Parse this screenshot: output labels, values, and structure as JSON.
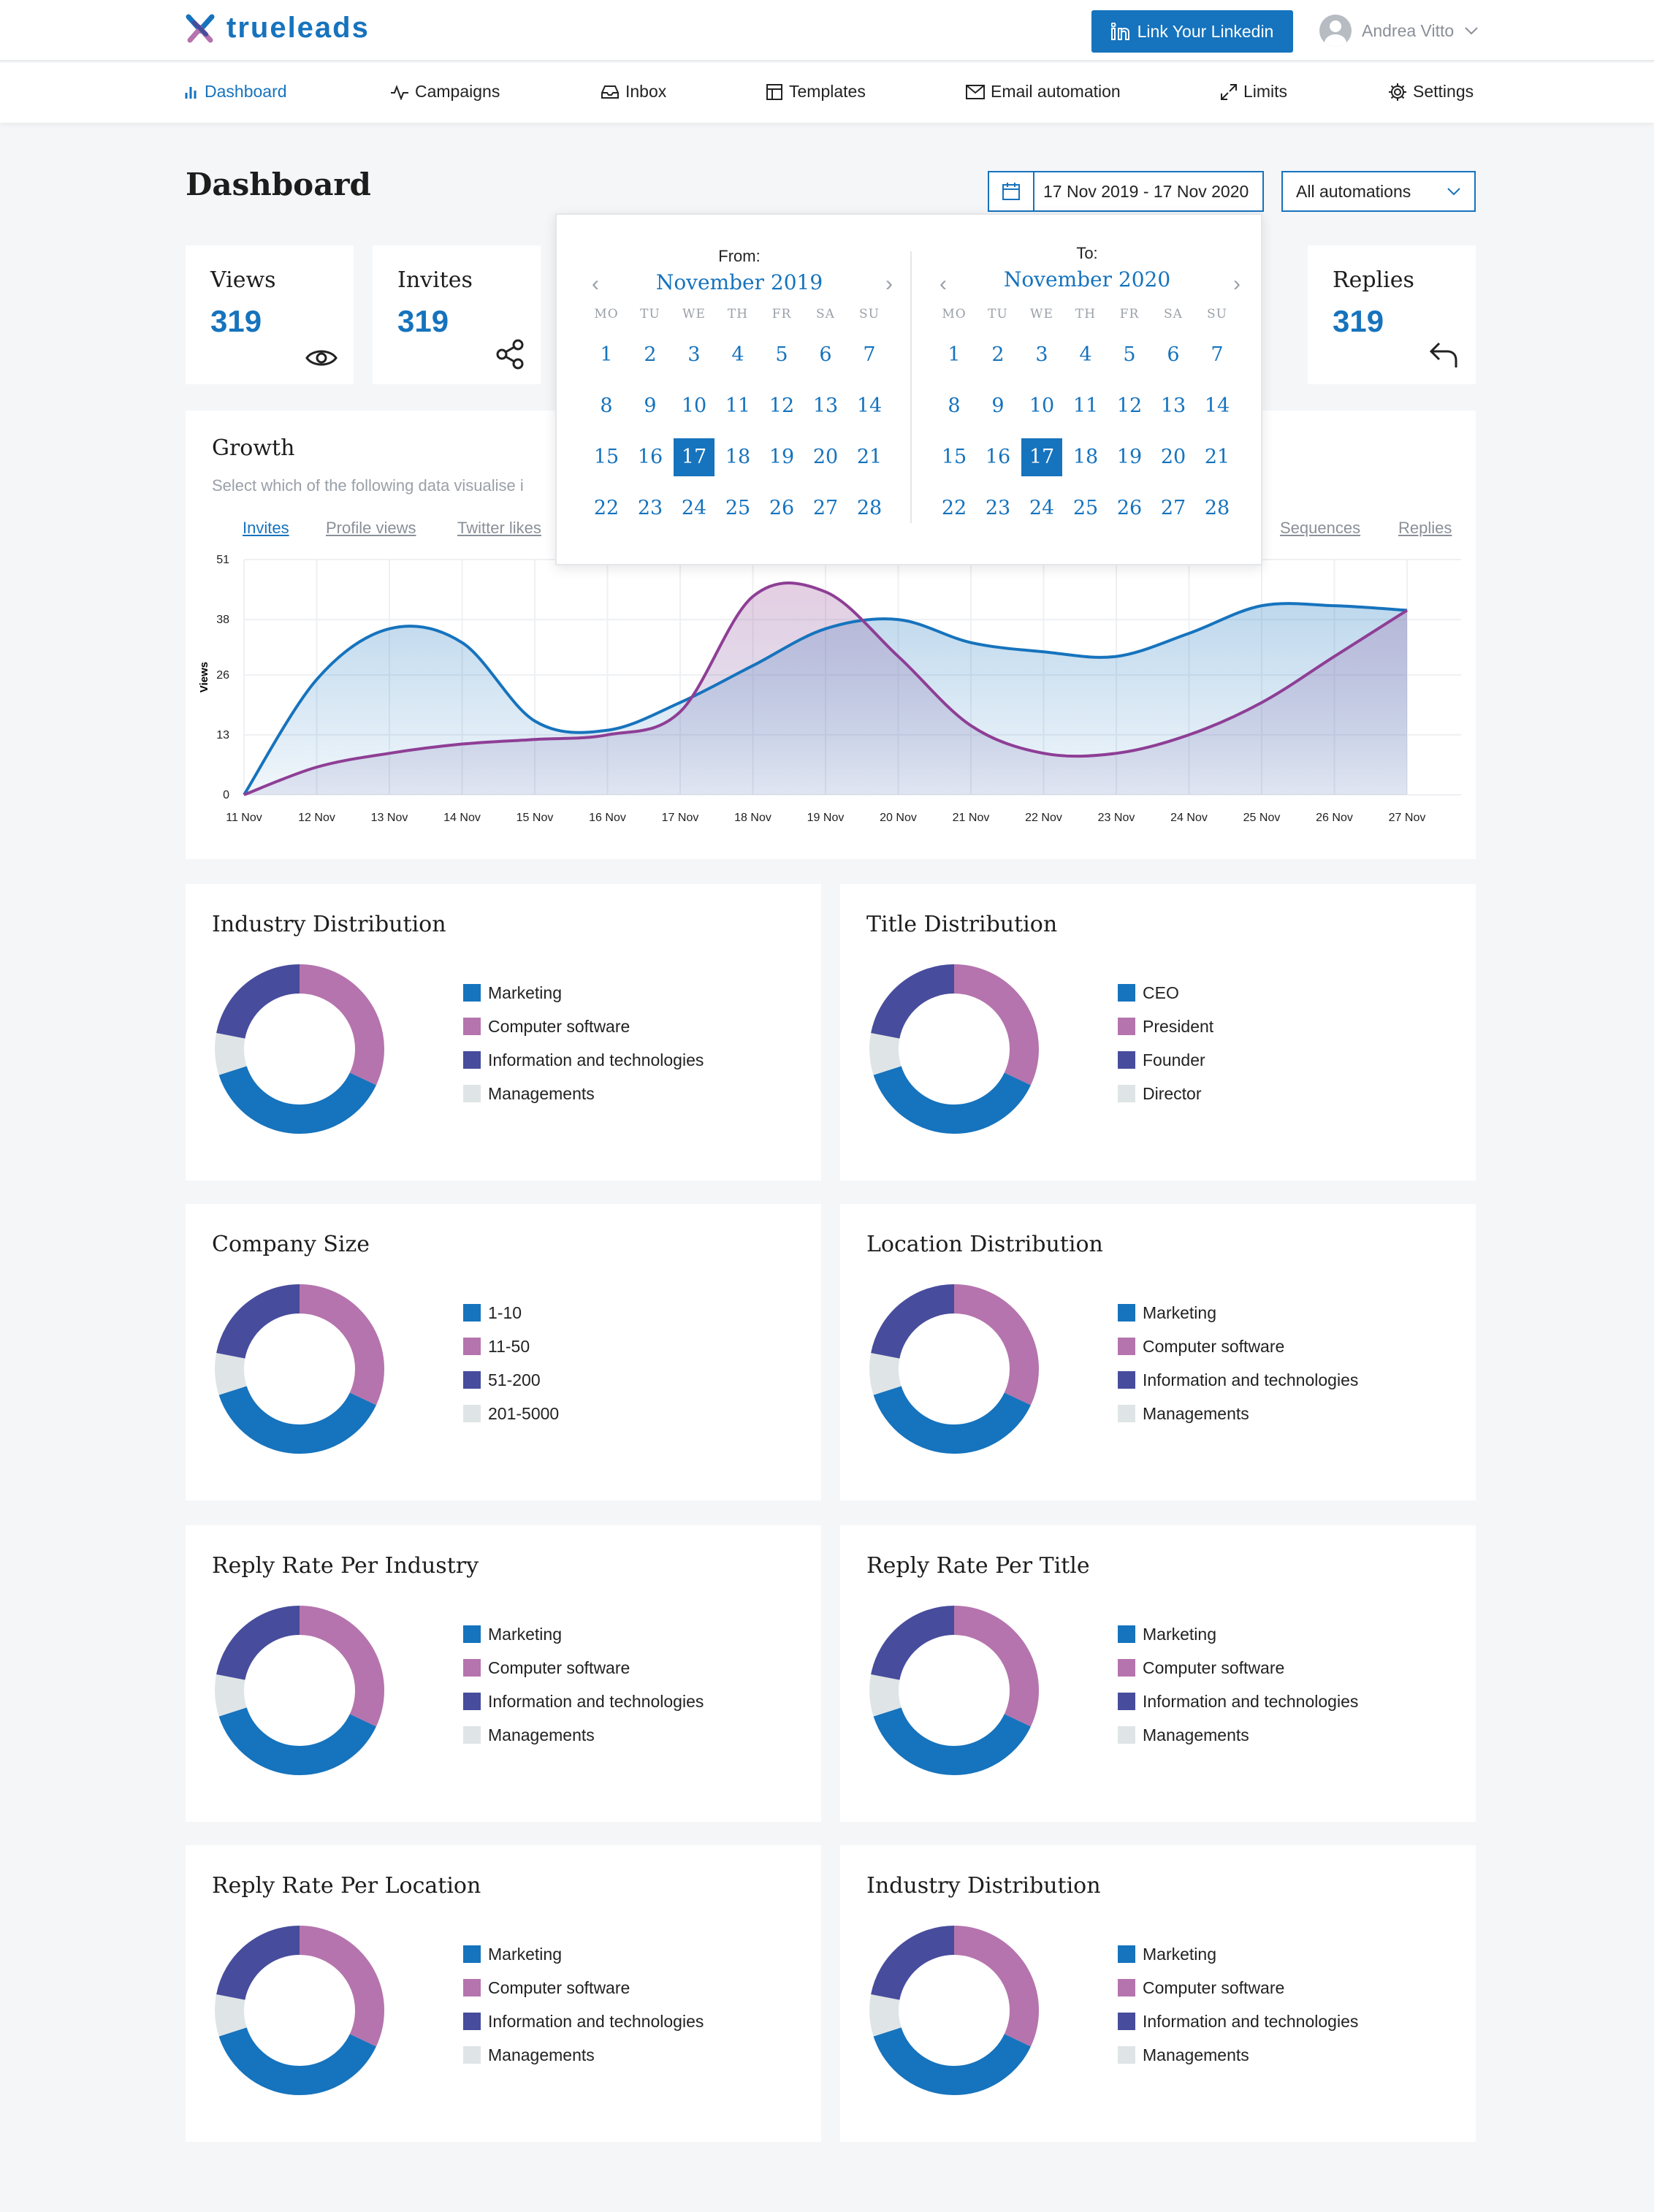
{
  "brand": {
    "name": "trueleads"
  },
  "header": {
    "link_button": "Link Your Linkedin",
    "user_name": "Andrea Vitto"
  },
  "nav": [
    {
      "label": "Dashboard",
      "icon": "bar-chart-icon",
      "active": true
    },
    {
      "label": "Campaigns",
      "icon": "activity-icon"
    },
    {
      "label": "Inbox",
      "icon": "inbox-icon"
    },
    {
      "label": "Templates",
      "icon": "layout-icon"
    },
    {
      "label": "Email automation",
      "icon": "mail-icon"
    },
    {
      "label": "Limits",
      "icon": "expand-icon"
    },
    {
      "label": "Settings",
      "icon": "gear-icon"
    }
  ],
  "page": {
    "title": "Dashboard",
    "date_range": "17 Nov 2019 - 17 Nov 2020",
    "automation_select": "All automations"
  },
  "stats": [
    {
      "label": "Views",
      "value": "319",
      "icon": "eye-icon"
    },
    {
      "label": "Invites",
      "value": "319",
      "icon": "share-icon"
    },
    {
      "label": "Replies",
      "value": "319",
      "icon": "reply-icon"
    }
  ],
  "growth": {
    "title": "Growth",
    "subtitle": "Select which of the following data visualise i",
    "tabs": [
      "Invites",
      "Profile views",
      "Twitter likes",
      "Sequences",
      "Replies"
    ]
  },
  "chart_data": {
    "type": "area",
    "x": [
      "11 Nov",
      "12 Nov",
      "13 Nov",
      "14 Nov",
      "15 Nov",
      "16 Nov",
      "17 Nov",
      "18 Nov",
      "19 Nov",
      "20 Nov",
      "21 Nov",
      "22 Nov",
      "23 Nov",
      "24 Nov",
      "25 Nov",
      "26 Nov",
      "27 Nov"
    ],
    "ylabel": "Views",
    "yticks": [
      0,
      13,
      26,
      38,
      51
    ],
    "ylim": [
      0,
      51
    ],
    "series": [
      {
        "values": [
          0,
          25,
          36,
          33,
          16,
          14,
          20,
          28,
          36,
          38,
          33,
          31,
          30,
          35,
          41,
          41,
          40
        ],
        "color": "#1673bd"
      },
      {
        "values": [
          0,
          6,
          9,
          11,
          12,
          13,
          18,
          43,
          44,
          30,
          15,
          9,
          9,
          13,
          20,
          30,
          40
        ],
        "color": "#8e3e95"
      }
    ]
  },
  "calendar": {
    "weekdays": [
      "MO",
      "TU",
      "WE",
      "TH",
      "FR",
      "SA",
      "SU"
    ],
    "from": {
      "label": "From:",
      "month": "November 2019",
      "selected": 17,
      "days": [
        1,
        2,
        3,
        4,
        5,
        6,
        7,
        8,
        9,
        10,
        11,
        12,
        13,
        14,
        15,
        16,
        17,
        18,
        19,
        20,
        21,
        22,
        23,
        24,
        25,
        26,
        27,
        28
      ]
    },
    "to": {
      "label": "To:",
      "month": "November 2020",
      "selected": 17,
      "days": [
        1,
        2,
        3,
        4,
        5,
        6,
        7,
        8,
        9,
        10,
        11,
        12,
        13,
        14,
        15,
        16,
        17,
        18,
        19,
        20,
        21,
        22,
        23,
        24,
        25,
        26,
        27,
        28
      ]
    }
  },
  "colors": {
    "blue": "#1673bd",
    "pink": "#b574ad",
    "indigo": "#474c9c",
    "grey": "#dfe5e6"
  },
  "donuts": [
    {
      "title": "Industry Distribution",
      "legend": [
        "Marketing",
        "Computer software",
        "Information and technologies",
        "Managements"
      ],
      "values": [
        38,
        32,
        22,
        8
      ]
    },
    {
      "title": "Title Distribution",
      "legend": [
        "CEO",
        "President",
        "Founder",
        "Director"
      ],
      "values": [
        38,
        32,
        22,
        8
      ]
    },
    {
      "title": "Company Size",
      "legend": [
        "1-10",
        "11-50",
        "51-200",
        "201-5000"
      ],
      "values": [
        38,
        32,
        22,
        8
      ]
    },
    {
      "title": "Location Distribution",
      "legend": [
        "Marketing",
        "Computer software",
        "Information and technologies",
        "Managements"
      ],
      "values": [
        38,
        32,
        22,
        8
      ]
    },
    {
      "title": "Reply Rate Per Industry",
      "legend": [
        "Marketing",
        "Computer software",
        "Information and technologies",
        "Managements"
      ],
      "values": [
        38,
        32,
        22,
        8
      ]
    },
    {
      "title": "Reply Rate Per Title",
      "legend": [
        "Marketing",
        "Computer software",
        "Information and technologies",
        "Managements"
      ],
      "values": [
        38,
        32,
        22,
        8
      ]
    },
    {
      "title": "Reply Rate Per Location",
      "legend": [
        "Marketing",
        "Computer software",
        "Information and technologies",
        "Managements"
      ],
      "values": [
        38,
        32,
        22,
        8
      ]
    },
    {
      "title": "Industry Distribution",
      "legend": [
        "Marketing",
        "Computer software",
        "Information and technologies",
        "Managements"
      ],
      "values": [
        38,
        32,
        22,
        8
      ]
    }
  ]
}
